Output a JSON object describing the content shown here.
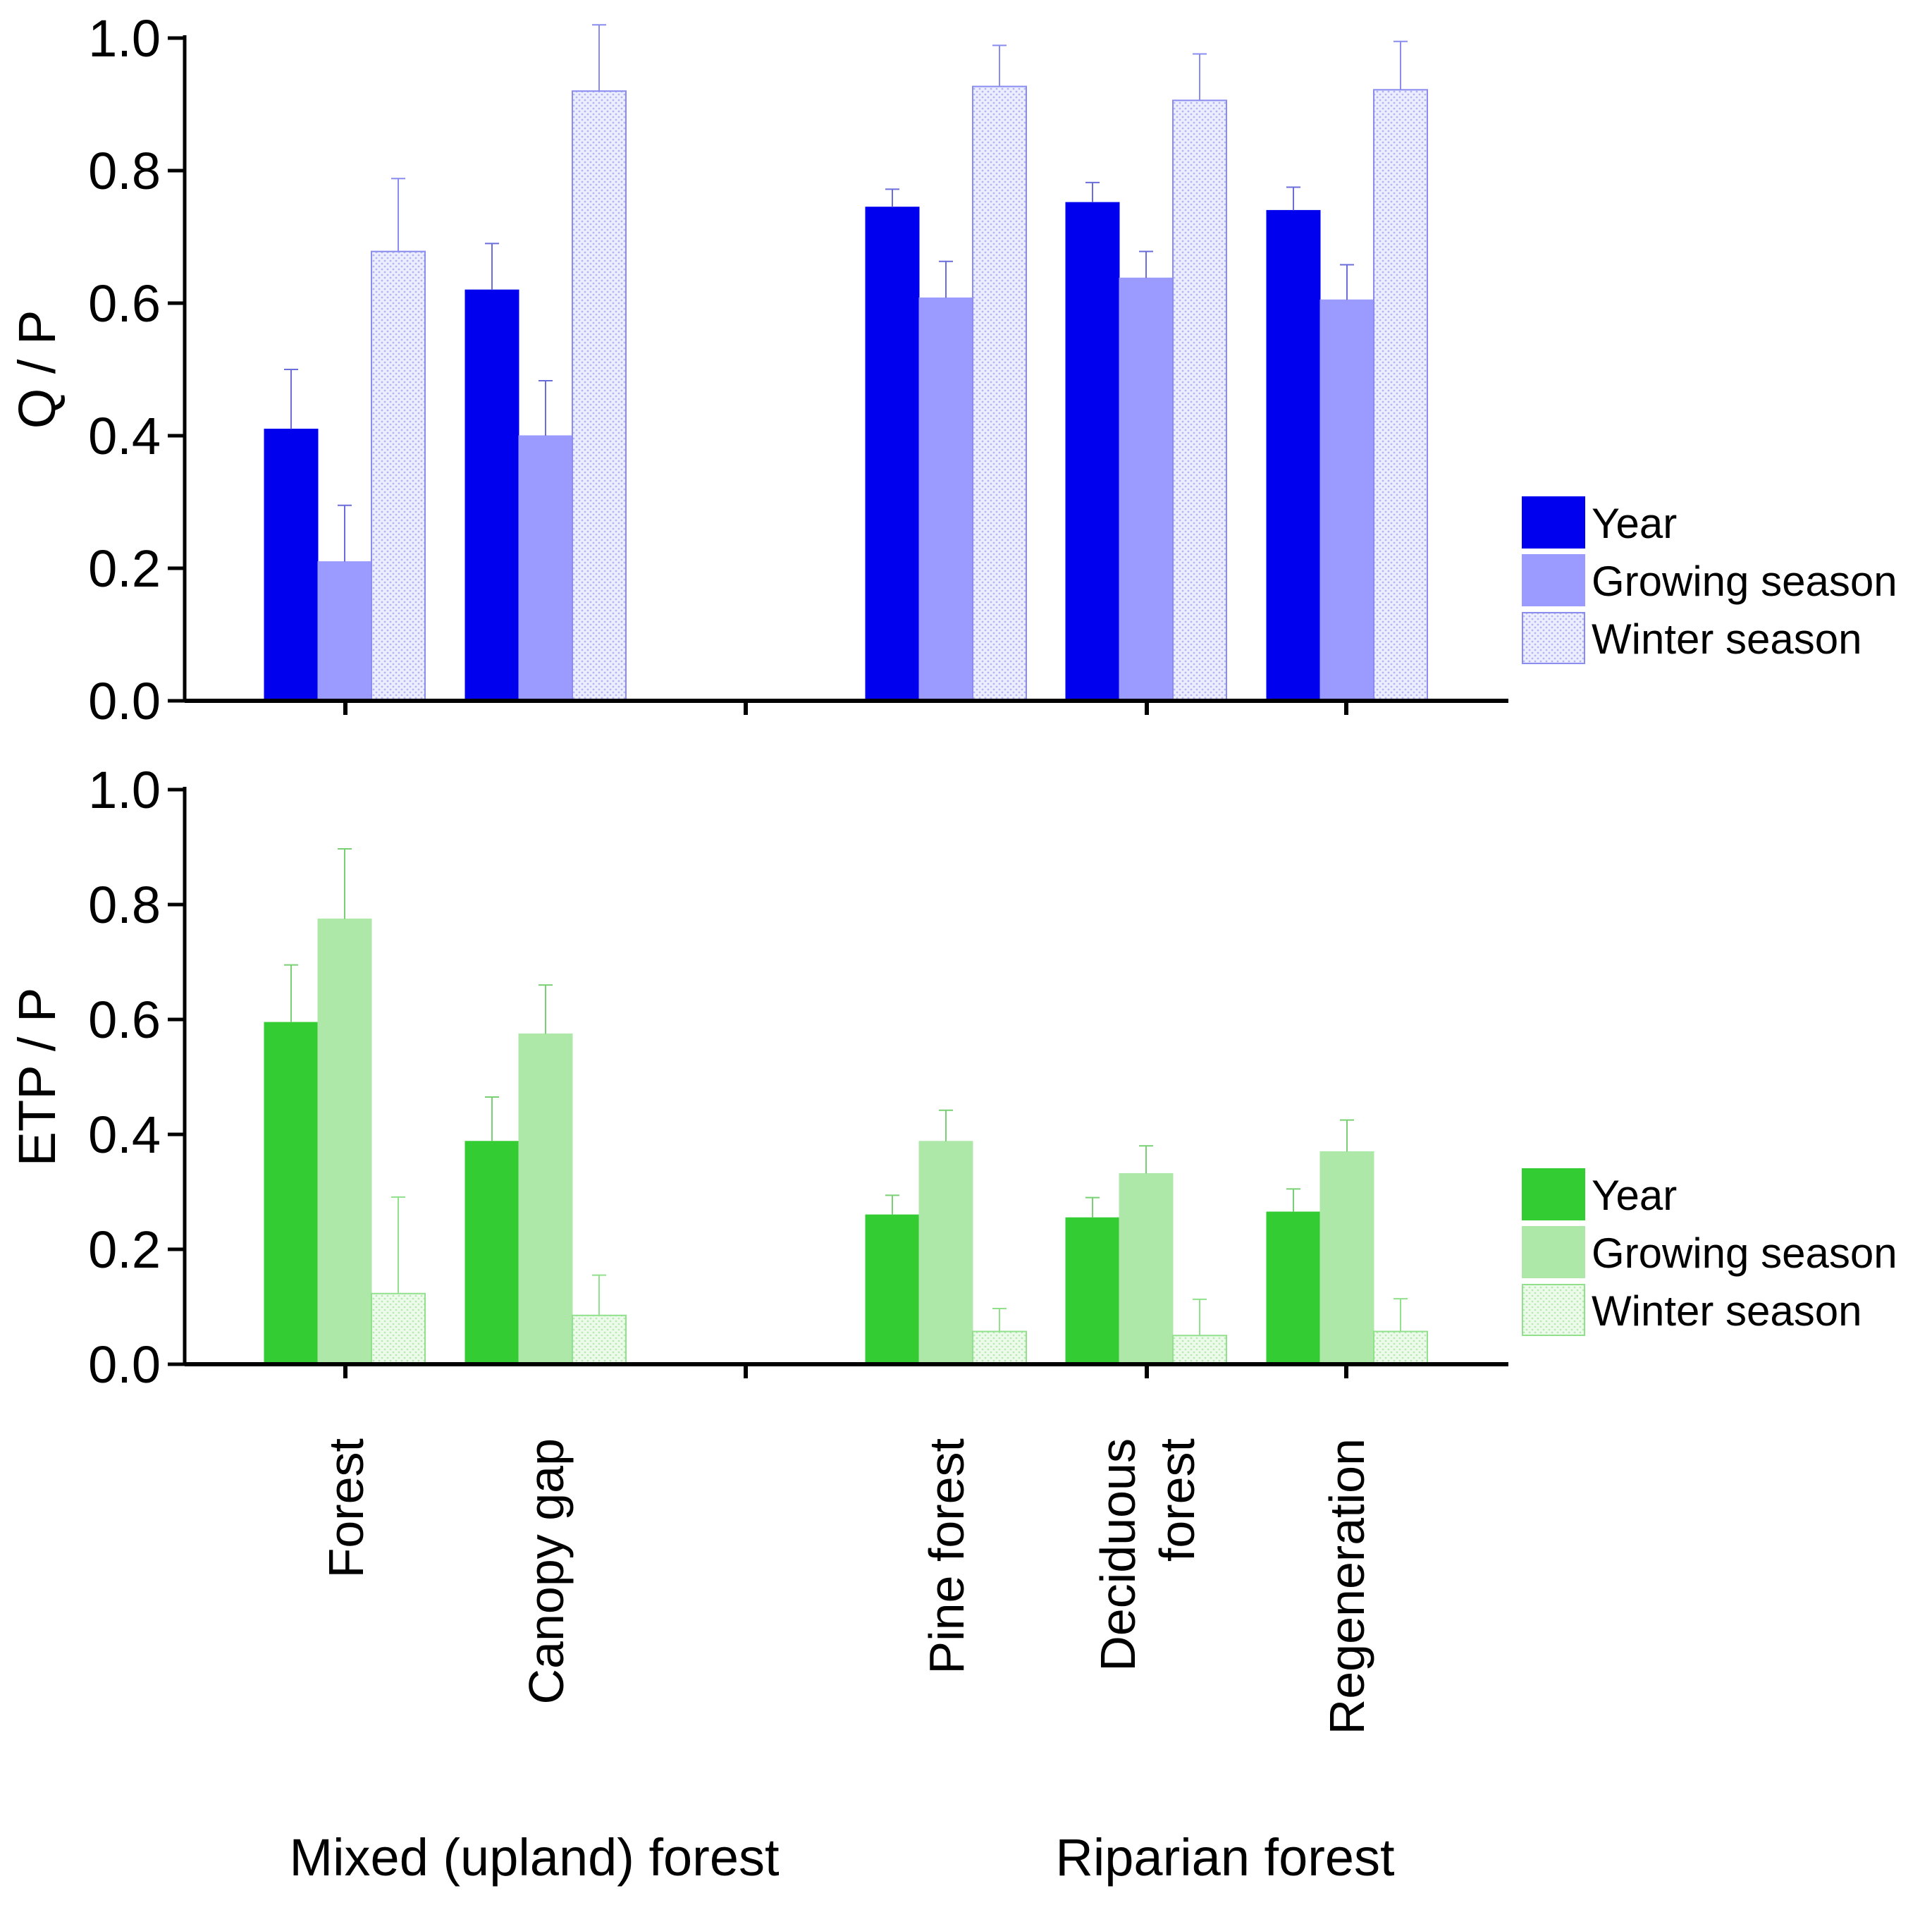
{
  "chart_data": {
    "type": "bar",
    "categories": [
      "Forest",
      "Canopy gap",
      "Pine forest",
      "Deciduous forest",
      "Regeneration"
    ],
    "category_label_lines": [
      [
        "Forest"
      ],
      [
        "Canopy gap"
      ],
      [
        "Pine forest"
      ],
      [
        "Deciduous",
        "forest"
      ],
      [
        "Regeneration"
      ]
    ],
    "groups": [
      {
        "name": "Mixed (upland) forest",
        "categories": [
          "Forest",
          "Canopy gap"
        ]
      },
      {
        "name": "Riparian forest",
        "categories": [
          "Pine forest",
          "Deciduous forest",
          "Regeneration"
        ]
      }
    ],
    "panels": [
      {
        "id": "qp",
        "ylabel": "Q / P",
        "ylim": [
          0,
          1.0
        ],
        "yticks": [
          "0.0",
          "0.2",
          "0.4",
          "0.6",
          "0.8",
          "1.0"
        ],
        "series": [
          {
            "name": "Year",
            "color": "#0000ee",
            "values": [
              0.41,
              0.62,
              0.745,
              0.752,
              0.74
            ],
            "errors": [
              0.09,
              0.07,
              0.027,
              0.03,
              0.035
            ]
          },
          {
            "name": "Growing season",
            "color": "#9a9aff",
            "values": [
              0.21,
              0.4,
              0.608,
              0.638,
              0.605
            ],
            "errors": [
              0.085,
              0.083,
              0.055,
              0.04,
              0.053
            ]
          },
          {
            "name": "Winter season",
            "color": "#e6e8ff",
            "stroke": "#8a8cf0",
            "values": [
              0.678,
              0.92,
              0.927,
              0.906,
              0.922
            ],
            "errors": [
              0.11,
              0.1,
              0.062,
              0.07,
              0.073
            ]
          }
        ]
      },
      {
        "id": "etp",
        "ylabel": "ETP / P",
        "ylim": [
          0,
          1.0
        ],
        "yticks": [
          "0.0",
          "0.2",
          "0.4",
          "0.6",
          "0.8",
          "1.0"
        ],
        "series": [
          {
            "name": "Year",
            "color": "#33cc33",
            "values": [
              0.595,
              0.388,
              0.26,
              0.255,
              0.265
            ],
            "errors": [
              0.1,
              0.077,
              0.034,
              0.035,
              0.04
            ]
          },
          {
            "name": "Growing season",
            "color": "#aee8a8",
            "values": [
              0.775,
              0.575,
              0.388,
              0.332,
              0.37
            ],
            "errors": [
              0.122,
              0.085,
              0.054,
              0.048,
              0.055
            ]
          },
          {
            "name": "Winter season",
            "color": "#e8f8e6",
            "stroke": "#90e08c",
            "values": [
              0.123,
              0.085,
              0.057,
              0.05,
              0.057
            ],
            "errors": [
              0.168,
              0.07,
              0.04,
              0.063,
              0.057
            ]
          }
        ]
      }
    ]
  }
}
